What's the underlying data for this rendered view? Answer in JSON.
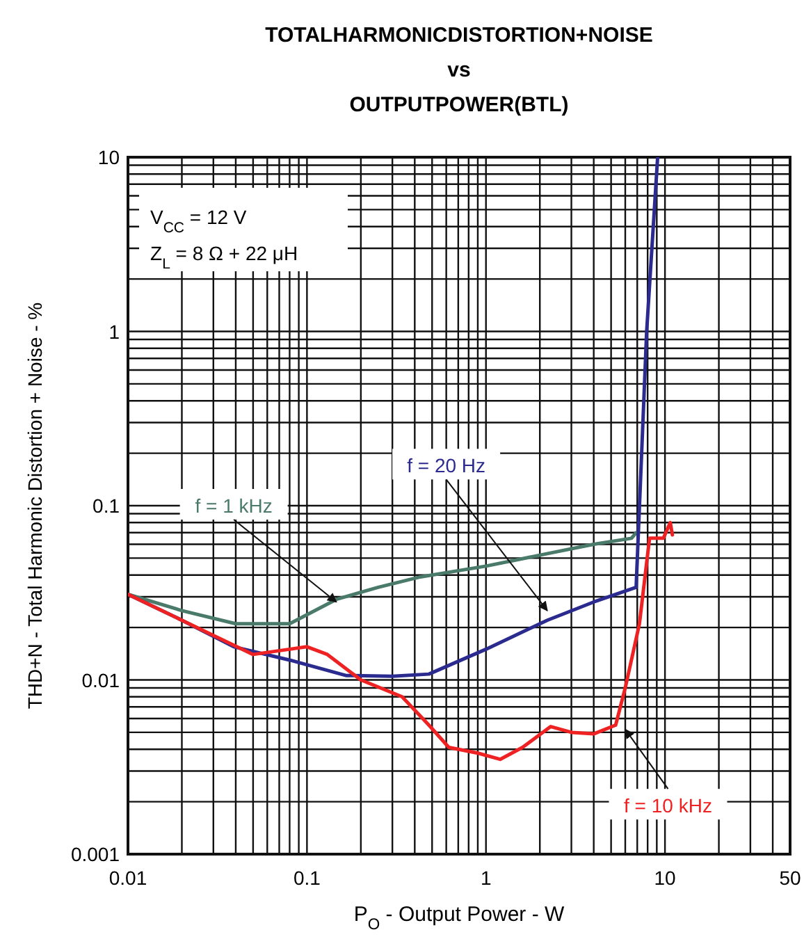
{
  "chart_data": {
    "type": "line",
    "title": "TOTALHARMONICDISTORTION+NOISE\nvs\nOUTPUTPOWER(BTL)",
    "xlabel": "P$_{O}$ - Output Power - W",
    "ylabel": "THD+N - Total Harmonic Distortion + Noise - %",
    "log": "xy",
    "grid": true,
    "legend": false,
    "marker": "none",
    "line_style": "solid",
    "xlim": [
      0.01,
      50
    ],
    "xticks": [
      0.01,
      0.1,
      1,
      10,
      50
    ],
    "ylim": [
      0.001,
      10
    ],
    "yticks": [
      0.001,
      0.01,
      0.1,
      1,
      10
    ],
    "annotations": [
      "V$_{CC}$ = 12 V",
      "Z$_{L}$ = 8 Ω + 22 μH"
    ],
    "series": [
      {
        "name": "f = 1 kHz",
        "color": "#4a7a6a",
        "x": [
          0.01,
          0.02,
          0.04,
          0.08,
          0.146,
          0.25,
          0.43,
          1,
          2,
          4,
          6.5,
          6.9
        ],
        "values": [
          0.031,
          0.025,
          0.021,
          0.021,
          0.029,
          0.034,
          0.039,
          0.045,
          0.052,
          0.06,
          0.065,
          0.07
        ]
      },
      {
        "name": "f = 20 Hz",
        "color": "#2b2b8f",
        "x": [
          0.01,
          0.02,
          0.039,
          0.08,
          0.165,
          0.3,
          0.48,
          1,
          2.2,
          4,
          6.9,
          7.9,
          9.1
        ],
        "values": [
          0.031,
          0.022,
          0.0155,
          0.013,
          0.0106,
          0.0105,
          0.0108,
          0.015,
          0.022,
          0.028,
          0.034,
          1,
          10
        ]
      },
      {
        "name": "f = 10 kHz",
        "color": "#ee2222",
        "x": [
          0.01,
          0.02,
          0.05,
          0.08,
          0.1,
          0.13,
          0.2,
          0.34,
          0.48,
          0.62,
          0.9,
          1.2,
          1.6,
          2.3,
          3,
          4,
          5.3,
          6,
          7.2,
          8.2,
          9.8,
          10.7,
          11
        ],
        "values": [
          0.031,
          0.022,
          0.014,
          0.015,
          0.0155,
          0.014,
          0.01,
          0.008,
          0.0055,
          0.0041,
          0.0038,
          0.0035,
          0.0041,
          0.0054,
          0.005,
          0.0049,
          0.0055,
          0.009,
          0.021,
          0.065,
          0.065,
          0.08,
          0.068
        ]
      }
    ]
  }
}
